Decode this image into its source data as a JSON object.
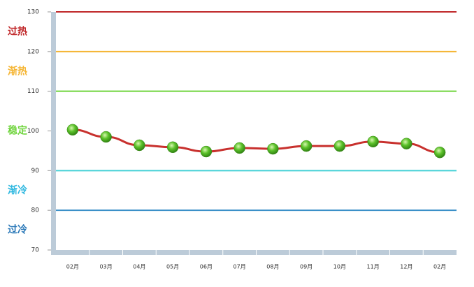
{
  "chart_data": {
    "type": "line",
    "categories": [
      "02月",
      "03月",
      "04月",
      "05月",
      "06月",
      "07月",
      "08月",
      "09月",
      "10月",
      "11月",
      "12月",
      "02月"
    ],
    "series": [
      {
        "color": "#c8312e",
        "values": [
          100.3,
          98.5,
          96.4,
          95.9,
          94.8,
          95.7,
          95.5,
          96.2,
          96.2,
          97.3,
          96.8,
          94.6
        ]
      }
    ],
    "ylim": [
      70,
      130
    ],
    "yticks": [
      70,
      80,
      90,
      100,
      110,
      120,
      130
    ],
    "reference_lines": [
      {
        "value": 130,
        "color": "#c0282a"
      },
      {
        "value": 120,
        "color": "#f5b533"
      },
      {
        "value": 110,
        "color": "#6fd43c"
      },
      {
        "value": 90,
        "color": "#44d0d6"
      },
      {
        "value": 80,
        "color": "#3a8fc8"
      }
    ],
    "zones": [
      {
        "label": "过热",
        "color": "#c0282a"
      },
      {
        "label": "渐热",
        "color": "#f5b533"
      },
      {
        "label": "稳定",
        "color": "#6fd43c"
      },
      {
        "label": "渐冷",
        "color": "#2fb8e0"
      },
      {
        "label": "过冷",
        "color": "#2a78b8"
      }
    ]
  }
}
